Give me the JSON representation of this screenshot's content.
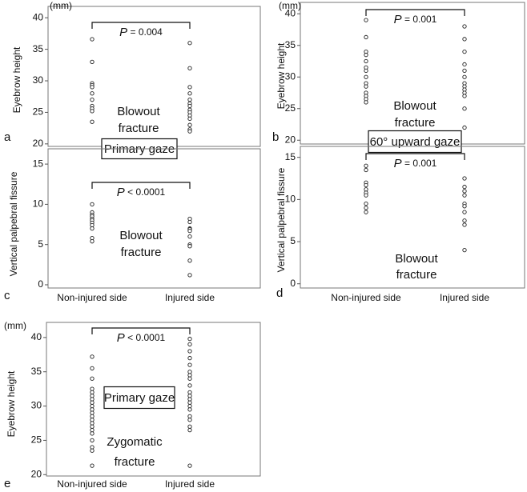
{
  "chart_data": [
    {
      "type": "strip",
      "panel": "a",
      "unit": "(mm)",
      "ylabel": "Eyebrow  height",
      "ylim": [
        19.6,
        41.8
      ],
      "yticks": [
        20,
        25,
        30,
        35,
        40
      ],
      "groups": [
        [
          36.6,
          33.0,
          29.6,
          29.3,
          29.0,
          28.0,
          27.0,
          26.0,
          25.6,
          25.2,
          23.5
        ],
        [
          36.0,
          32.0,
          29.0,
          28.0,
          27.0,
          26.4,
          26.0,
          25.4,
          25.0,
          24.5,
          24.0,
          23.0,
          22.3,
          22.0
        ]
      ],
      "p_symbol": "P",
      "p_text": " = 0.004",
      "annotation": [
        "Blowout",
        "fracture"
      ],
      "gaze_label": "Primary gaze"
    },
    {
      "type": "strip",
      "panel": "b",
      "unit": "(mm)",
      "ylabel": "Eyebrow  height",
      "ylim": [
        19.4,
        41.8
      ],
      "yticks": [
        20,
        25,
        30,
        35,
        40
      ],
      "groups": [
        [
          39.0,
          36.3,
          34.0,
          33.5,
          32.5,
          31.5,
          31.0,
          30.0,
          29.0,
          28.5,
          27.5,
          27.0,
          26.5,
          26.0
        ],
        [
          38.0,
          36.0,
          34.0,
          32.0,
          31.0,
          30.0,
          29.0,
          28.5,
          28.0,
          27.5,
          27.0,
          25.0,
          22.0
        ]
      ],
      "p_symbol": "P",
      "p_text": " = 0.001",
      "annotation": [
        "Blowout",
        "fracture"
      ],
      "gaze_label": "60° upward gaze"
    },
    {
      "type": "strip",
      "panel": "c",
      "ylabel": "Vertical palpebral fissure",
      "ylim": [
        -0.4,
        16.9
      ],
      "yticks": [
        0,
        5,
        10,
        15
      ],
      "categories": [
        "Non-injured side",
        "Injured side"
      ],
      "groups": [
        [
          10.0,
          9.0,
          8.7,
          8.5,
          8.2,
          8.0,
          7.7,
          7.4,
          7.0,
          5.8,
          5.4
        ],
        [
          8.2,
          7.8,
          7.0,
          6.9,
          6.7,
          6.0,
          5.0,
          4.8,
          3.0,
          1.2
        ]
      ],
      "p_symbol": "P",
      "p_text": " < 0.0001",
      "annotation": [
        "Blowout",
        "fracture"
      ]
    },
    {
      "type": "strip",
      "panel": "d",
      "ylabel": "Vertical palpebral fissure",
      "ylim": [
        -0.5,
        16.3
      ],
      "yticks": [
        0,
        5,
        10,
        15
      ],
      "categories": [
        "Non-injured side",
        "Injured side"
      ],
      "groups": [
        [
          14.0,
          13.5,
          12.0,
          11.7,
          11.2,
          10.8,
          10.5,
          9.5,
          9.0,
          8.5
        ],
        [
          12.5,
          11.5,
          11.0,
          10.5,
          9.5,
          9.2,
          8.5,
          7.5,
          7.0,
          4.0
        ]
      ],
      "p_symbol": "P",
      "p_text": " = 0.001",
      "annotation": [
        "Blowout",
        "fracture"
      ]
    },
    {
      "type": "strip",
      "panel": "e",
      "unit": "(mm)",
      "ylabel": "Eyebrow height",
      "ylim": [
        19.8,
        42.2
      ],
      "yticks": [
        20,
        25,
        30,
        35,
        40
      ],
      "categories": [
        "Non-injured side",
        "Injured side"
      ],
      "groups": [
        [
          37.2,
          35.5,
          34.0,
          32.5,
          32.0,
          31.5,
          31.0,
          30.5,
          30.0,
          29.5,
          29.0,
          28.5,
          28.0,
          27.5,
          27.0,
          26.5,
          26.0,
          25.0,
          24.0,
          23.5,
          21.3
        ],
        [
          39.8,
          39.0,
          38.0,
          37.0,
          36.0,
          35.0,
          34.5,
          34.0,
          33.0,
          32.0,
          31.5,
          31.0,
          30.5,
          30.0,
          29.5,
          28.5,
          28.0,
          27.0,
          26.5,
          21.3
        ]
      ],
      "p_symbol": "P",
      "p_text": " < 0.0001",
      "annotation": [
        "Zygomatic",
        "fracture"
      ],
      "gaze_label": "Primary gaze"
    }
  ]
}
